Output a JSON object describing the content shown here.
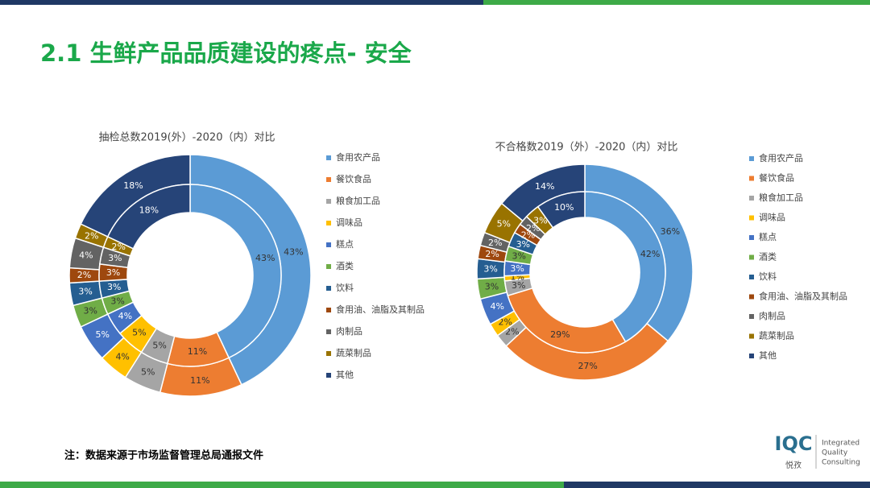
{
  "header": {
    "title": "2.1 生鲜产品品质建设的疼点- 安全"
  },
  "chart_data": [
    {
      "type": "donut",
      "title": "抽检总数2019(外）-2020（内）对比",
      "categories": [
        "食用农产品",
        "餐饮食品",
        "粮食加工品",
        "调味品",
        "糕点",
        "酒类",
        "饮料",
        "食用油、油脂及其制品",
        "肉制品",
        "蔬菜制品",
        "其他"
      ],
      "colors": [
        "#5b9bd5",
        "#ed7d31",
        "#a5a5a5",
        "#ffc000",
        "#4472c4",
        "#70ad47",
        "#255e91",
        "#9e480e",
        "#636363",
        "#997300",
        "#264478"
      ],
      "rings": [
        {
          "values": [
            43,
            11,
            5,
            4,
            5,
            3,
            3,
            2,
            4,
            2,
            18
          ],
          "value_labels": [
            "43%",
            "11%",
            "5%",
            "4%",
            "5%",
            "3%",
            "3%",
            "2%",
            "4%",
            "2%",
            "18%"
          ]
        },
        {
          "values": [
            43,
            11,
            5,
            5,
            4,
            3,
            3,
            3,
            3,
            2,
            18
          ],
          "value_labels": [
            "43%",
            "11%",
            "5%",
            "5%",
            "4%",
            "3%",
            "3%",
            "3%",
            "3%",
            "2%",
            "18%"
          ]
        }
      ]
    },
    {
      "type": "donut",
      "title": "不合格数2019（外）-2020（内）对比",
      "categories": [
        "食用农产品",
        "餐饮食品",
        "粮食加工品",
        "调味品",
        "糕点",
        "酒类",
        "饮料",
        "食用油、油脂及其制品",
        "肉制品",
        "蔬菜制品",
        "其他"
      ],
      "colors": [
        "#5b9bd5",
        "#ed7d31",
        "#a5a5a5",
        "#ffc000",
        "#4472c4",
        "#70ad47",
        "#255e91",
        "#9e480e",
        "#636363",
        "#997300",
        "#264478"
      ],
      "rings": [
        {
          "values": [
            36,
            27,
            2,
            2,
            4,
            3,
            3,
            2,
            2,
            5,
            14
          ],
          "value_labels": [
            "36%",
            "27%",
            "2%",
            "2%",
            "4%",
            "3%",
            "3%",
            "2%",
            "2%",
            "5%",
            "14%"
          ]
        },
        {
          "values": [
            42,
            29,
            3,
            1,
            3,
            3,
            3,
            2,
            2,
            3,
            10
          ],
          "value_labels": [
            "42%",
            "29%",
            "3%",
            "1%",
            "3%",
            "3%",
            "3%",
            "2%",
            "2%",
            "3%",
            "10%"
          ]
        }
      ]
    }
  ],
  "footer": {
    "note": "注：数据来源于市场监督管理总局通报文件"
  },
  "logo": {
    "mark": "IQC",
    "name": "悦孜",
    "line1": "Integrated",
    "line2": "Quality",
    "line3": "Consulting"
  }
}
